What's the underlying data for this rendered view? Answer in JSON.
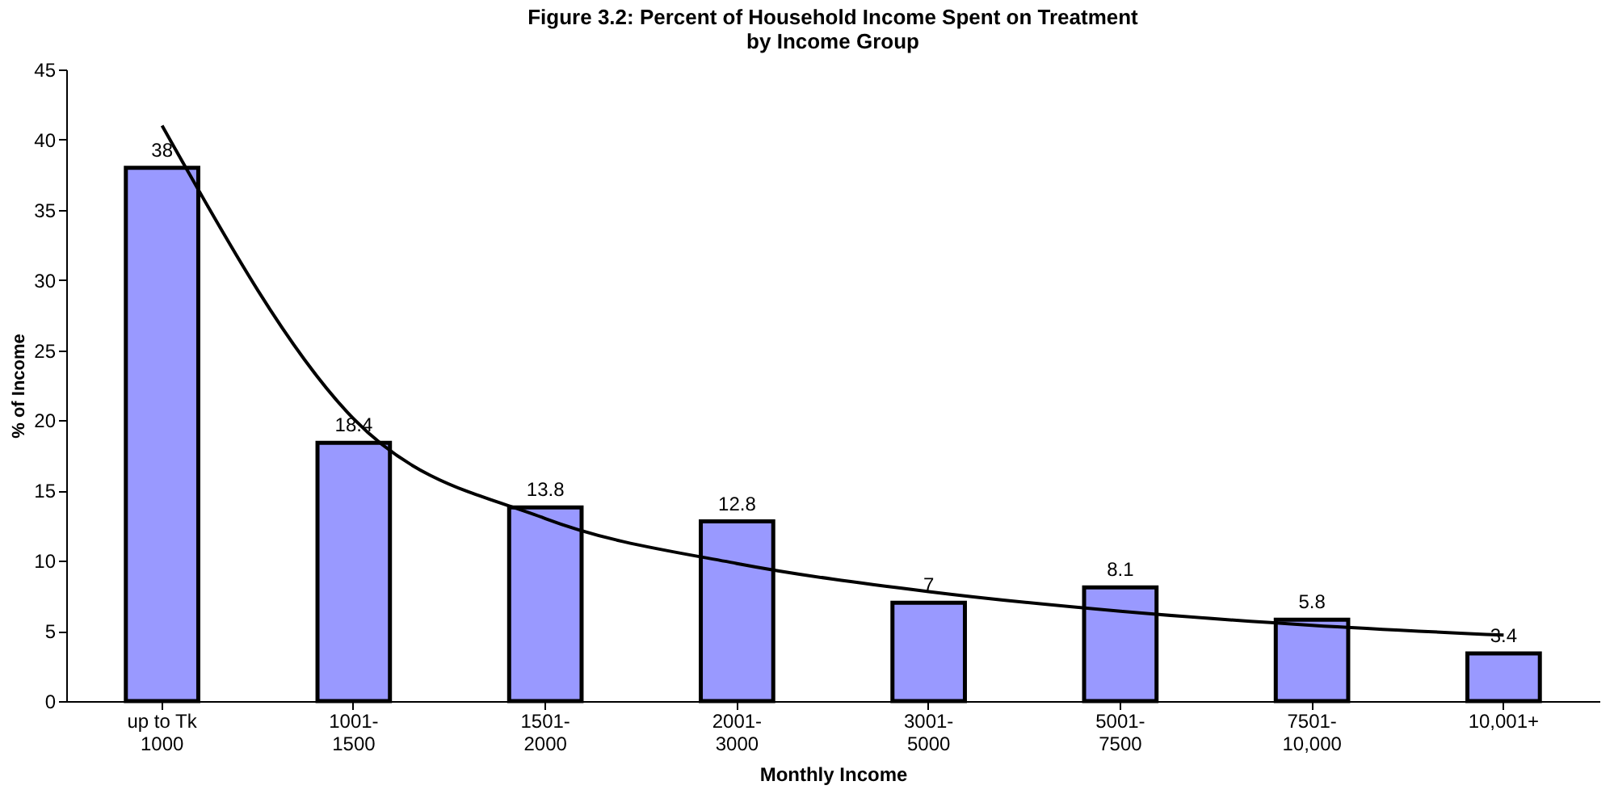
{
  "chart_data": {
    "type": "bar",
    "title": [
      "Figure 3.2: Percent of Household Income Spent on Treatment",
      "by Income Group"
    ],
    "xlabel": "Monthly Income",
    "ylabel": "% of Income",
    "categories": [
      "up to Tk\n1000",
      "1001-\n1500",
      "1501-\n2000",
      "2001-\n3000",
      "3001-\n5000",
      "5001-\n7500",
      "7501-\n10,000",
      "10,001+"
    ],
    "series": [
      {
        "color": "#9999ff",
        "values": [
          38,
          18.4,
          13.8,
          12.8,
          7,
          8.1,
          5.8,
          3.4
        ],
        "value_labels": [
          "38",
          "18.4",
          "13.8",
          "12.8",
          "7",
          "8.1",
          "5.8",
          "3.4"
        ]
      },
      {
        "type": "line",
        "color": "#000000",
        "x": [
          "up to Tk\n1000",
          "1001-\n1500",
          "1501-\n2000",
          "2001-\n3000",
          "3001-\n5000",
          "5001-\n7500",
          "7501-\n10,000",
          "10,001+"
        ],
        "values": [
          41,
          20.1,
          13.0,
          9.8,
          7.8,
          6.4,
          5.4,
          4.7
        ]
      }
    ],
    "ylim": [
      0,
      45
    ],
    "yticks": [
      0,
      5,
      10,
      15,
      20,
      25,
      30,
      35,
      40,
      45
    ],
    "grid": false,
    "marker": "none",
    "line_style": "solid"
  }
}
